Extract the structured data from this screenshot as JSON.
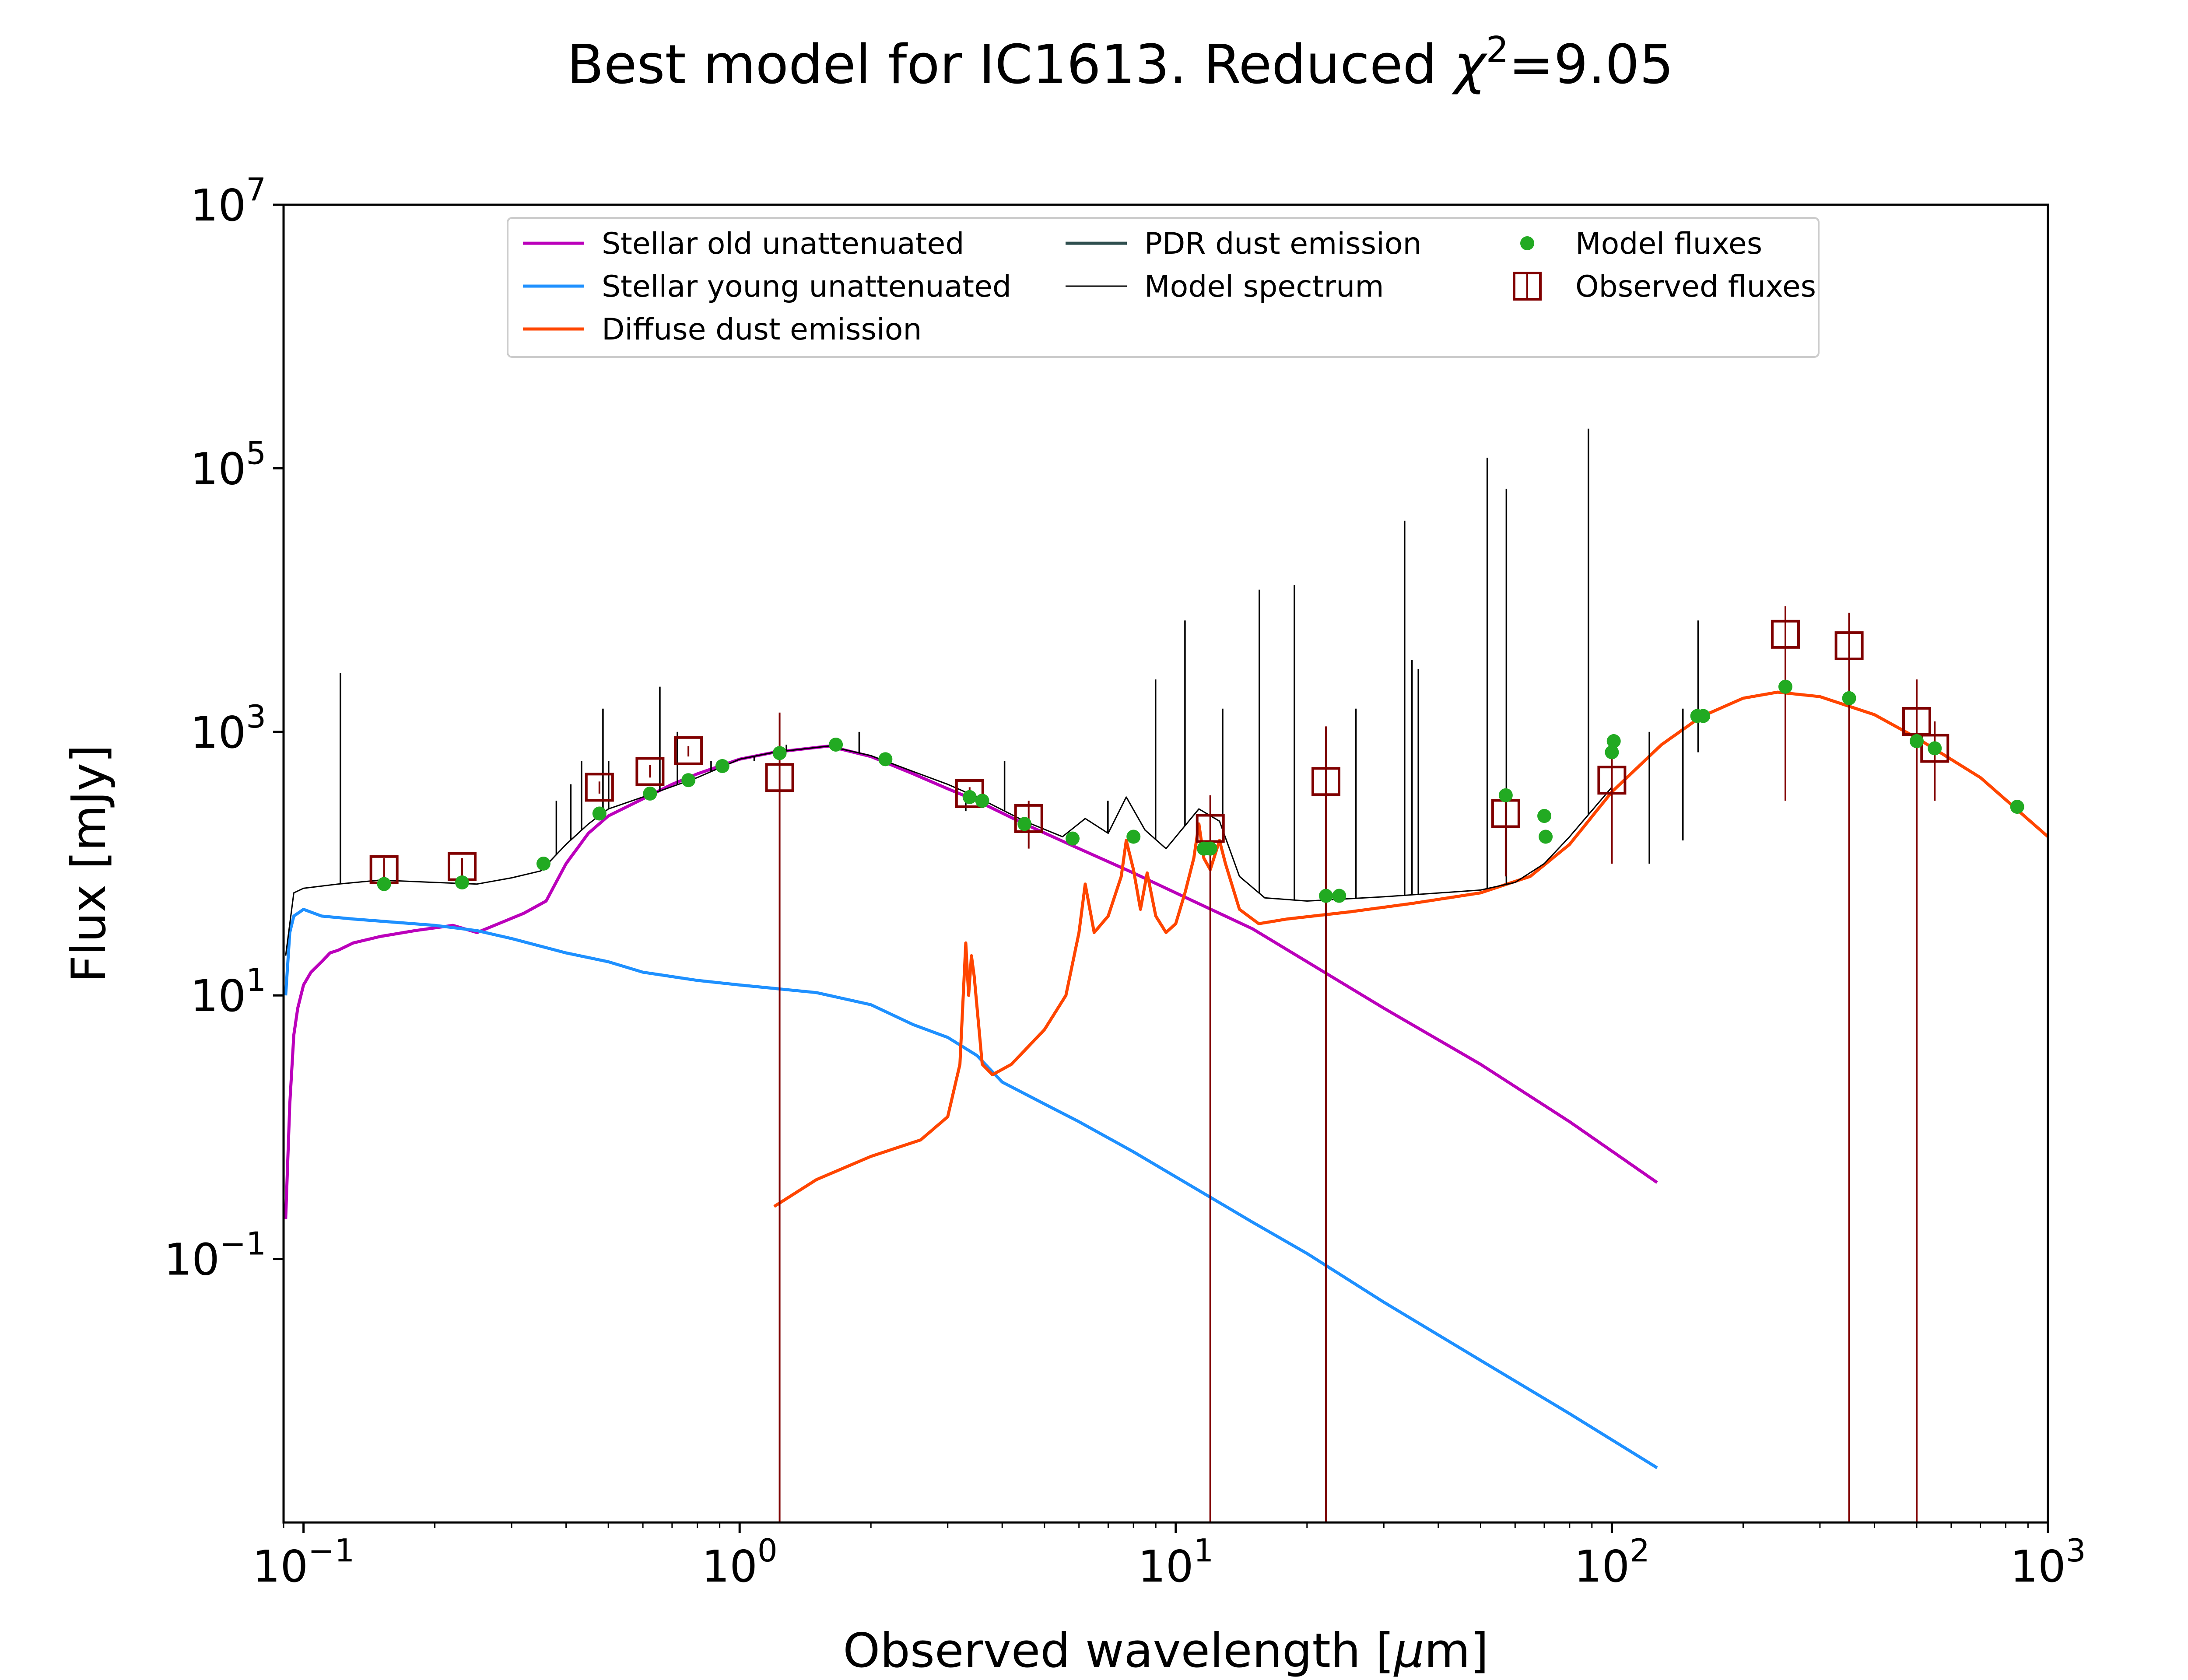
{
  "chart_data": {
    "type": "line",
    "title": {
      "prefix": "Best model for IC1613. Reduced ",
      "chi": "χ",
      "sup": "2",
      "suffix": "=9.05"
    },
    "xlabel": {
      "prefix": "Observed wavelength [",
      "mu": "μ",
      "suffix": "m]"
    },
    "ylabel": "Flux [mJy]",
    "x_scale": "log",
    "y_scale": "log",
    "xlim": [
      0.09,
      1000
    ],
    "ylim": [
      0.001,
      10000000
    ],
    "x_ticks": [
      {
        "value": 0.1,
        "base": "10",
        "exp": "−1"
      },
      {
        "value": 1,
        "base": "10",
        "exp": "0"
      },
      {
        "value": 10,
        "base": "10",
        "exp": "1"
      },
      {
        "value": 100,
        "base": "10",
        "exp": "2"
      },
      {
        "value": 1000,
        "base": "10",
        "exp": "3"
      }
    ],
    "y_ticks": [
      {
        "value": 0.1,
        "base": "10",
        "exp": "−1"
      },
      {
        "value": 10,
        "base": "10",
        "exp": "1"
      },
      {
        "value": 1000,
        "base": "10",
        "exp": "3"
      },
      {
        "value": 100000,
        "base": "10",
        "exp": "5"
      },
      {
        "value": 10000000,
        "base": "10",
        "exp": "7"
      }
    ],
    "grid": false,
    "legend_position": "top-center",
    "legend": [
      {
        "label": "Stellar old unattenuated",
        "kind": "line",
        "color": "#bb00bb"
      },
      {
        "label": "Stellar young unattenuated",
        "kind": "line",
        "color": "#1e90ff"
      },
      {
        "label": "Diffuse dust emission",
        "kind": "line",
        "color": "#ff4500"
      },
      {
        "label": "PDR dust emission",
        "kind": "line",
        "color": "#2f4f4f"
      },
      {
        "label": "Model spectrum",
        "kind": "thinline",
        "color": "#000000"
      },
      {
        "label": "Model fluxes",
        "kind": "dot",
        "color": "#22aa22"
      },
      {
        "label": "Observed fluxes",
        "kind": "square",
        "color": "#800000"
      }
    ],
    "series": [
      {
        "name": "Stellar old unattenuated",
        "color": "#bb00bb",
        "points": [
          [
            0.091,
            0.2
          ],
          [
            0.093,
            1.5
          ],
          [
            0.095,
            5
          ],
          [
            0.097,
            8
          ],
          [
            0.1,
            12
          ],
          [
            0.104,
            15
          ],
          [
            0.11,
            18
          ],
          [
            0.115,
            21
          ],
          [
            0.12,
            22
          ],
          [
            0.13,
            25
          ],
          [
            0.15,
            28
          ],
          [
            0.18,
            31
          ],
          [
            0.22,
            34
          ],
          [
            0.25,
            30
          ],
          [
            0.28,
            35
          ],
          [
            0.32,
            42
          ],
          [
            0.36,
            52
          ],
          [
            0.4,
            100
          ],
          [
            0.45,
            170
          ],
          [
            0.5,
            230
          ],
          [
            0.6,
            310
          ],
          [
            0.7,
            400
          ],
          [
            0.8,
            480
          ],
          [
            1.0,
            620
          ],
          [
            1.2,
            700
          ],
          [
            1.6,
            780
          ],
          [
            2.0,
            650
          ],
          [
            2.5,
            480
          ],
          [
            3.0,
            370
          ],
          [
            3.5,
            300
          ],
          [
            4.5,
            200
          ],
          [
            6,
            130
          ],
          [
            8,
            85
          ],
          [
            10,
            60
          ],
          [
            15,
            32
          ],
          [
            20,
            18
          ],
          [
            30,
            8
          ],
          [
            50,
            3
          ],
          [
            80,
            1.1
          ],
          [
            127,
            0.38
          ]
        ]
      },
      {
        "name": "Stellar young unattenuated",
        "color": "#1e90ff",
        "points": [
          [
            0.091,
            10
          ],
          [
            0.093,
            30
          ],
          [
            0.095,
            40
          ],
          [
            0.1,
            45
          ],
          [
            0.11,
            40
          ],
          [
            0.13,
            38
          ],
          [
            0.16,
            36
          ],
          [
            0.2,
            34
          ],
          [
            0.25,
            31
          ],
          [
            0.3,
            27
          ],
          [
            0.4,
            21
          ],
          [
            0.5,
            18
          ],
          [
            0.6,
            15
          ],
          [
            0.8,
            13
          ],
          [
            1.0,
            12
          ],
          [
            1.5,
            10.5
          ],
          [
            2.0,
            8.5
          ],
          [
            2.5,
            6
          ],
          [
            3.0,
            4.8
          ],
          [
            3.5,
            3.5
          ],
          [
            4.0,
            2.2
          ],
          [
            5.0,
            1.5
          ],
          [
            6.0,
            1.1
          ],
          [
            8.0,
            0.65
          ],
          [
            10,
            0.42
          ],
          [
            15,
            0.19
          ],
          [
            20,
            0.11
          ],
          [
            30,
            0.047
          ],
          [
            50,
            0.017
          ],
          [
            80,
            0.0067
          ],
          [
            127,
            0.0026
          ]
        ]
      },
      {
        "name": "Diffuse dust emission",
        "color": "#ff4500",
        "points": [
          [
            1.2,
            0.25
          ],
          [
            1.5,
            0.4
          ],
          [
            2.0,
            0.6
          ],
          [
            2.6,
            0.8
          ],
          [
            3.0,
            1.2
          ],
          [
            3.2,
            3
          ],
          [
            3.3,
            25
          ],
          [
            3.35,
            10
          ],
          [
            3.4,
            20
          ],
          [
            3.45,
            14
          ],
          [
            3.6,
            3
          ],
          [
            3.8,
            2.5
          ],
          [
            4.2,
            3
          ],
          [
            5.0,
            5.5
          ],
          [
            5.6,
            10
          ],
          [
            6.0,
            30
          ],
          [
            6.2,
            70
          ],
          [
            6.5,
            30
          ],
          [
            7.0,
            40
          ],
          [
            7.5,
            80
          ],
          [
            7.7,
            150
          ],
          [
            8.0,
            90
          ],
          [
            8.3,
            45
          ],
          [
            8.6,
            85
          ],
          [
            9.0,
            40
          ],
          [
            9.5,
            30
          ],
          [
            10,
            35
          ],
          [
            10.5,
            60
          ],
          [
            11.0,
            110
          ],
          [
            11.3,
            200
          ],
          [
            11.6,
            110
          ],
          [
            12.0,
            90
          ],
          [
            12.6,
            150
          ],
          [
            13.0,
            100
          ],
          [
            14,
            45
          ],
          [
            15.5,
            35
          ],
          [
            18,
            38
          ],
          [
            25,
            43
          ],
          [
            35,
            50
          ],
          [
            50,
            60
          ],
          [
            65,
            80
          ],
          [
            80,
            140
          ],
          [
            100,
            350
          ],
          [
            130,
            800
          ],
          [
            160,
            1300
          ],
          [
            200,
            1800
          ],
          [
            240,
            2000
          ],
          [
            300,
            1850
          ],
          [
            400,
            1350
          ],
          [
            500,
            900
          ],
          [
            700,
            450
          ],
          [
            1000,
            160
          ]
        ]
      },
      {
        "name": "Model spectrum",
        "color": "#000000",
        "points": [
          [
            0.091,
            20
          ],
          [
            0.095,
            60
          ],
          [
            0.1,
            65
          ],
          [
            0.12,
            70
          ],
          [
            0.15,
            75
          ],
          [
            0.2,
            72
          ],
          [
            0.25,
            70
          ],
          [
            0.3,
            78
          ],
          [
            0.35,
            88
          ],
          [
            0.4,
            140
          ],
          [
            0.45,
            200
          ],
          [
            0.5,
            260
          ],
          [
            0.6,
            320
          ],
          [
            0.8,
            450
          ],
          [
            1.0,
            620
          ],
          [
            1.2,
            700
          ],
          [
            1.6,
            780
          ],
          [
            2.0,
            660
          ],
          [
            2.5,
            500
          ],
          [
            3.0,
            400
          ],
          [
            3.5,
            320
          ],
          [
            4.5,
            210
          ],
          [
            5.5,
            160
          ],
          [
            6.2,
            220
          ],
          [
            7.0,
            170
          ],
          [
            7.7,
            320
          ],
          [
            8.5,
            180
          ],
          [
            9.5,
            130
          ],
          [
            11.3,
            260
          ],
          [
            12.6,
            210
          ],
          [
            14,
            80
          ],
          [
            16,
            55
          ],
          [
            20,
            52
          ],
          [
            30,
            56
          ],
          [
            50,
            63
          ],
          [
            60,
            72
          ],
          [
            70,
            100
          ],
          [
            80,
            160
          ],
          [
            100,
            380
          ]
        ]
      },
      {
        "name": "Model spectrum lines",
        "color": "#000000",
        "lines": [
          [
            0.1215,
            2800
          ],
          [
            0.38,
            300
          ],
          [
            0.41,
            400
          ],
          [
            0.434,
            600
          ],
          [
            0.486,
            1500
          ],
          [
            0.5007,
            600
          ],
          [
            0.6563,
            2200
          ],
          [
            0.72,
            1000
          ],
          [
            0.86,
            600
          ],
          [
            1.08,
            600
          ],
          [
            1.28,
            800
          ],
          [
            1.88,
            1000
          ],
          [
            3.3,
            250
          ],
          [
            4.05,
            600
          ],
          [
            6.99,
            300
          ],
          [
            8.99,
            2500
          ],
          [
            10.5,
            7000
          ],
          [
            12.81,
            1500
          ],
          [
            15.55,
            12000
          ],
          [
            18.71,
            13000
          ],
          [
            25.89,
            1500
          ],
          [
            33.48,
            40000
          ],
          [
            34.81,
            3500
          ],
          [
            36.0,
            3000
          ],
          [
            51.8,
            120000
          ],
          [
            57.3,
            70000
          ],
          [
            88.36,
            200000
          ],
          [
            121.9,
            1000
          ],
          [
            145.5,
            1500
          ],
          [
            157.7,
            7000
          ]
        ]
      }
    ],
    "model_fluxes": [
      [
        0.153,
        70
      ],
      [
        0.231,
        72
      ],
      [
        0.355,
        100
      ],
      [
        0.477,
        240
      ],
      [
        0.623,
        340
      ],
      [
        0.763,
        430
      ],
      [
        0.913,
        550
      ],
      [
        1.235,
        690
      ],
      [
        1.662,
        800
      ],
      [
        2.159,
        620
      ],
      [
        3.368,
        320
      ],
      [
        3.6,
        300
      ],
      [
        4.5,
        200
      ],
      [
        5.8,
        155
      ],
      [
        8.0,
        160
      ],
      [
        11.6,
        130
      ],
      [
        12.0,
        130
      ],
      [
        22.1,
        57
      ],
      [
        23.7,
        57
      ],
      [
        57.1,
        330
      ],
      [
        70.0,
        230
      ],
      [
        70.5,
        160
      ],
      [
        100,
        700
      ],
      [
        101,
        850
      ],
      [
        157,
        1320
      ],
      [
        162,
        1320
      ],
      [
        250,
        2200
      ],
      [
        350,
        1800
      ],
      [
        500,
        850
      ],
      [
        550,
        750
      ],
      [
        850,
        270
      ]
    ],
    "observed_fluxes": [
      {
        "x": 0.153,
        "y": 90,
        "lo": 70,
        "hi": 110
      },
      {
        "x": 0.231,
        "y": 95,
        "lo": 80,
        "hi": 110
      },
      {
        "x": 0.477,
        "y": 380,
        "lo": 340,
        "hi": 420
      },
      {
        "x": 0.623,
        "y": 500,
        "lo": 450,
        "hi": 560
      },
      {
        "x": 0.763,
        "y": 720,
        "lo": 650,
        "hi": 780
      },
      {
        "x": 1.235,
        "y": 450,
        "lo": 0.001,
        "hi": 1400
      },
      {
        "x": 3.368,
        "y": 340,
        "lo": 300,
        "hi": 380
      },
      {
        "x": 4.6,
        "y": 220,
        "lo": 130,
        "hi": 300
      },
      {
        "x": 12.0,
        "y": 185,
        "lo": 0.001,
        "hi": 330
      },
      {
        "x": 22.1,
        "y": 420,
        "lo": 0.001,
        "hi": 1100
      },
      {
        "x": 57.1,
        "y": 240,
        "lo": 80,
        "hi": 350
      },
      {
        "x": 100,
        "y": 430,
        "lo": 100,
        "hi": 900
      },
      {
        "x": 250,
        "y": 5500,
        "lo": 300,
        "hi": 9000
      },
      {
        "x": 350,
        "y": 4500,
        "lo": 0.001,
        "hi": 8000
      },
      {
        "x": 500,
        "y": 1200,
        "lo": 0.001,
        "hi": 2500
      },
      {
        "x": 550,
        "y": 750,
        "lo": 300,
        "hi": 1200
      }
    ]
  }
}
